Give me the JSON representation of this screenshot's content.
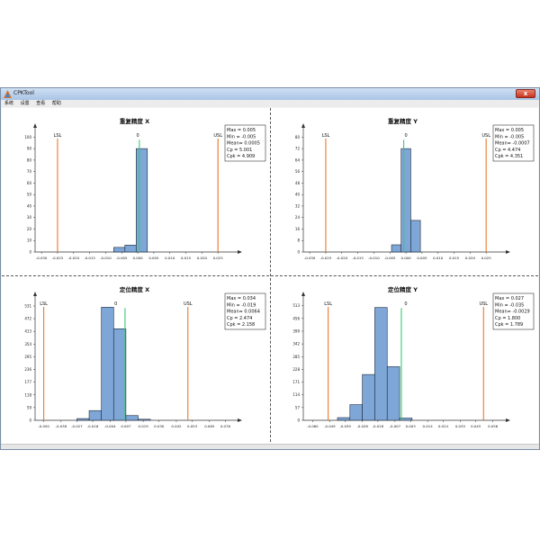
{
  "window": {
    "title": "CPKTool",
    "close_symbol": "x"
  },
  "menu": [
    "系统",
    "设置",
    "查看",
    "帮助"
  ],
  "colors": {
    "bar": "#7ea6d6",
    "mean_line": "#38c878",
    "spec_line": "#e8782a",
    "axis": "#333333"
  },
  "chart_data": [
    {
      "type": "bar",
      "title": "重复精度 X",
      "x_ticks": [
        "-0.030",
        "-0.025",
        "-0.020",
        "-0.015",
        "-0.010",
        "-0.005",
        "0.000",
        "0.005",
        "0.010",
        "0.015",
        "0.020",
        "0.025"
      ],
      "x_range": [
        -0.032,
        0.03
      ],
      "y_ticks": [
        "0",
        "10",
        "20",
        "30",
        "40",
        "50",
        "60",
        "70",
        "80",
        "90",
        "100"
      ],
      "ylim": [
        0,
        105
      ],
      "bins": [
        {
          "from": -0.0075,
          "to": -0.004,
          "value": 4
        },
        {
          "from": -0.004,
          "to": -0.0005,
          "value": 6
        },
        {
          "from": -0.0005,
          "to": 0.003,
          "value": 90
        }
      ],
      "lsl": -0.025,
      "usl": 0.025,
      "target": 0,
      "lsl_label": "LSL",
      "usl_label": "USL",
      "target_label": "0",
      "mean": 0.0005,
      "stats": [
        "Max = 0.005",
        "Min = -0.005",
        "Mean= 0.0005",
        "Cp = 5.001",
        "Cpk = 4.909"
      ]
    },
    {
      "type": "bar",
      "title": "重复精度 Y",
      "x_ticks": [
        "-0.030",
        "-0.025",
        "-0.020",
        "-0.015",
        "-0.010",
        "-0.005",
        "0.000",
        "0.005",
        "0.010",
        "0.015",
        "0.020",
        "0.025"
      ],
      "x_range": [
        -0.032,
        0.03
      ],
      "y_ticks": [
        "0",
        "8",
        "16",
        "24",
        "32",
        "40",
        "48",
        "56",
        "64",
        "72",
        "80"
      ],
      "ylim": [
        0,
        84
      ],
      "bins": [
        {
          "from": -0.0045,
          "to": -0.0015,
          "value": 5
        },
        {
          "from": -0.0015,
          "to": 0.0015,
          "value": 72
        },
        {
          "from": 0.0015,
          "to": 0.0045,
          "value": 22
        }
      ],
      "lsl": -0.025,
      "usl": 0.025,
      "target": 0,
      "lsl_label": "LSL",
      "usl_label": "USL",
      "target_label": "0",
      "mean": -0.0007,
      "stats": [
        "Max = 0.005",
        "Min = -0.005",
        "Mean= -0.0007",
        "Cp = 4.474",
        "Cpk = 4.351"
      ]
    },
    {
      "type": "bar",
      "title": "定位精度 X",
      "x_ticks": [
        "-0.050",
        "-0.038",
        "-0.027",
        "-0.016",
        "-0.004",
        "0.007",
        "0.019",
        "0.030",
        "0.042",
        "0.053",
        "0.065",
        "0.076"
      ],
      "x_range": [
        -0.056,
        0.082
      ],
      "y_ticks": [
        "0",
        "59",
        "118",
        "177",
        "236",
        "295",
        "354",
        "413",
        "472",
        "531"
      ],
      "ylim": [
        0,
        560
      ],
      "bins": [
        {
          "from": -0.027,
          "to": -0.0185,
          "value": 8
        },
        {
          "from": -0.0185,
          "to": -0.01,
          "value": 45
        },
        {
          "from": -0.01,
          "to": -0.0015,
          "value": 525
        },
        {
          "from": -0.0015,
          "to": 0.007,
          "value": 425
        },
        {
          "from": 0.007,
          "to": 0.0155,
          "value": 22
        },
        {
          "from": 0.0155,
          "to": 0.024,
          "value": 5
        }
      ],
      "lsl": -0.05,
      "usl": 0.05,
      "target": 0,
      "lsl_label": "LSL",
      "usl_label": "USL",
      "target_label": "0",
      "mean": 0.0064,
      "stats": [
        "Max = 0.034",
        "Min = -0.019",
        "Mean= 0.0064",
        "Cp = 2.474",
        "Cpk = 2.158"
      ]
    },
    {
      "type": "bar",
      "title": "定位精度 Y",
      "x_ticks": [
        "-0.060",
        "-0.049",
        "-0.039",
        "-0.028",
        "-0.018",
        "-0.007",
        "0.003",
        "0.014",
        "0.024",
        "0.035",
        "0.045",
        "0.056"
      ],
      "x_range": [
        -0.066,
        0.062
      ],
      "y_ticks": [
        "0",
        "57",
        "114",
        "171",
        "228",
        "285",
        "342",
        "399",
        "456",
        "513"
      ],
      "ylim": [
        0,
        540
      ],
      "bins": [
        {
          "from": -0.044,
          "to": -0.036,
          "value": 12
        },
        {
          "from": -0.036,
          "to": -0.028,
          "value": 70
        },
        {
          "from": -0.028,
          "to": -0.02,
          "value": 205
        },
        {
          "from": -0.02,
          "to": -0.012,
          "value": 505
        },
        {
          "from": -0.012,
          "to": -0.004,
          "value": 240
        },
        {
          "from": -0.004,
          "to": 0.004,
          "value": 10
        }
      ],
      "lsl": -0.05,
      "usl": 0.05,
      "target": 0,
      "lsl_label": "LSL",
      "usl_label": "USL",
      "target_label": "0",
      "mean": -0.0029,
      "stats": [
        "Max = 0.027",
        "Min = -0.035",
        "Mean= -0.0029",
        "Cp = 1.800",
        "Cpk = 1.789"
      ]
    }
  ]
}
